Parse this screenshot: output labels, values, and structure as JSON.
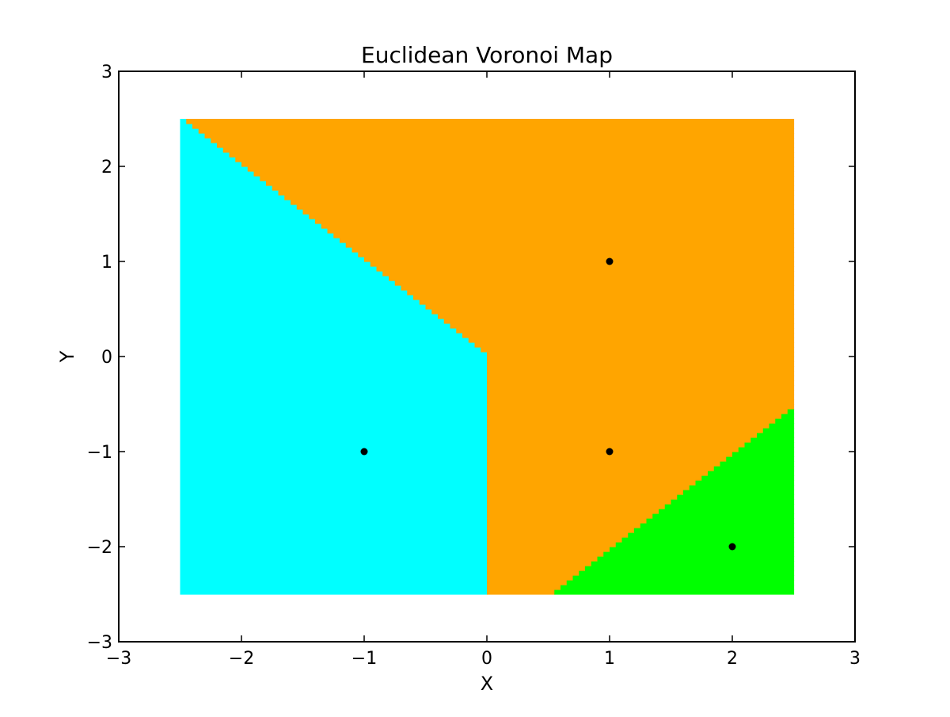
{
  "chart_data": {
    "type": "heatmap",
    "title": "Euclidean Voronoi Map",
    "xlabel": "X",
    "ylabel": "Y",
    "xlim": [
      -3,
      3
    ],
    "ylim": [
      -3,
      3
    ],
    "xticks": [
      -3,
      -2,
      -1,
      0,
      1,
      2,
      3
    ],
    "yticks": [
      -3,
      -2,
      -1,
      0,
      1,
      2,
      3
    ],
    "xtick_labels": [
      "−3",
      "−2",
      "−1",
      "0",
      "1",
      "2",
      "3"
    ],
    "ytick_labels": [
      "−3",
      "−2",
      "−1",
      "0",
      "1",
      "2",
      "3"
    ],
    "grid": false,
    "region_bounds": {
      "x": [
        -2.5,
        2.5
      ],
      "y": [
        -2.5,
        2.5
      ]
    },
    "grid_step": 0.05,
    "sites": [
      {
        "x": -1,
        "y": -1,
        "color": "#00ffff"
      },
      {
        "x": 1,
        "y": 1,
        "color": "#ffa500"
      },
      {
        "x": 1,
        "y": -1,
        "color": "#ffa500"
      },
      {
        "x": 2,
        "y": -2,
        "color": "#00ff00"
      }
    ],
    "site_marker_color": "#000000"
  }
}
